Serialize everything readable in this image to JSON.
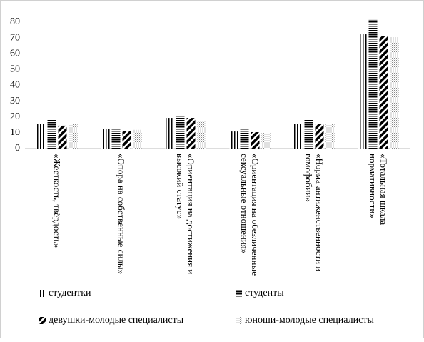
{
  "chart_data": {
    "type": "bar",
    "categories": [
      "«Жесткость, твёрдость»",
      "«Опора на собственные силы»",
      "«Ориентация на достижения и высокий статус»",
      "«Ориентация на обезличенные сексуальные отношения»",
      "«Норма антиженственности и гомофобии»",
      "«Тотальная шкала нормативности»"
    ],
    "series": [
      {
        "name": "студентки",
        "color": "#000000",
        "pattern": "vertical",
        "values": [
          15.4,
          12.2,
          19.4,
          10.8,
          15.4,
          72.3
        ]
      },
      {
        "name": "студенты",
        "color": "#000000",
        "pattern": "horizontal",
        "values": [
          18.1,
          13.1,
          20.3,
          12.2,
          18.5,
          81.4
        ]
      },
      {
        "name": "девушки-молодые  специалисты",
        "color": "#000000",
        "pattern": "diagonal",
        "values": [
          14.5,
          11.3,
          19.4,
          10.4,
          15.8,
          71.4
        ]
      },
      {
        "name": "юноши-молодые специалисты",
        "color": "#000000",
        "pattern": "dots",
        "values": [
          15.8,
          11.8,
          17.6,
          9.9,
          15.8,
          70.5
        ]
      }
    ],
    "ylim": [
      0,
      80
    ],
    "yticks": [
      0,
      10,
      20,
      30,
      40,
      50,
      60,
      70,
      80
    ],
    "grid": false
  }
}
